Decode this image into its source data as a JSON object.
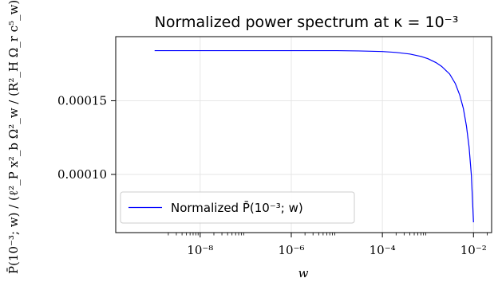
{
  "chart_data": {
    "type": "line",
    "title": "Normalized power spectrum at κ = 10⁻³",
    "xlabel": "w",
    "ylabel": "P̄(10⁻³; w) / (ℓ²_P x²_b Ω²_w / (R²_H Ω_r c⁵_w))",
    "x_scale": "log",
    "xlim": [
      1.4e-10,
      0.025
    ],
    "ylim": [
      6.05e-05,
      0.0001935
    ],
    "x_ticks": [
      {
        "value": 1e-08,
        "label": "10⁻⁸"
      },
      {
        "value": 1e-06,
        "label": "10⁻⁶"
      },
      {
        "value": 0.0001,
        "label": "10⁻⁴"
      },
      {
        "value": 0.01,
        "label": "10⁻²"
      }
    ],
    "y_ticks": [
      {
        "value": 0.0001,
        "label": "0.00010"
      },
      {
        "value": 0.00015,
        "label": "0.00015"
      }
    ],
    "grid": true,
    "legend_position": "lower-left",
    "series": [
      {
        "name": "Normalized P̄(10⁻³; w)",
        "color": "#0000ff",
        "x": [
          1e-09,
          1e-08,
          1e-07,
          1e-06,
          1e-05,
          3e-05,
          0.0001,
          0.0002,
          0.0004,
          0.0007,
          0.001,
          0.0015,
          0.002,
          0.003,
          0.004,
          0.005,
          0.006,
          0.007,
          0.008,
          0.009,
          0.01
        ],
        "y": [
          0.000184,
          0.000184,
          0.000184,
          0.000184,
          0.000184,
          0.0001838,
          0.0001834,
          0.0001828,
          0.0001817,
          0.0001801,
          0.0001785,
          0.0001759,
          0.0001733,
          0.0001681,
          0.0001616,
          0.0001538,
          0.0001447,
          0.0001329,
          0.0001186,
          9.92e-05,
          6.75e-05
        ]
      }
    ]
  }
}
